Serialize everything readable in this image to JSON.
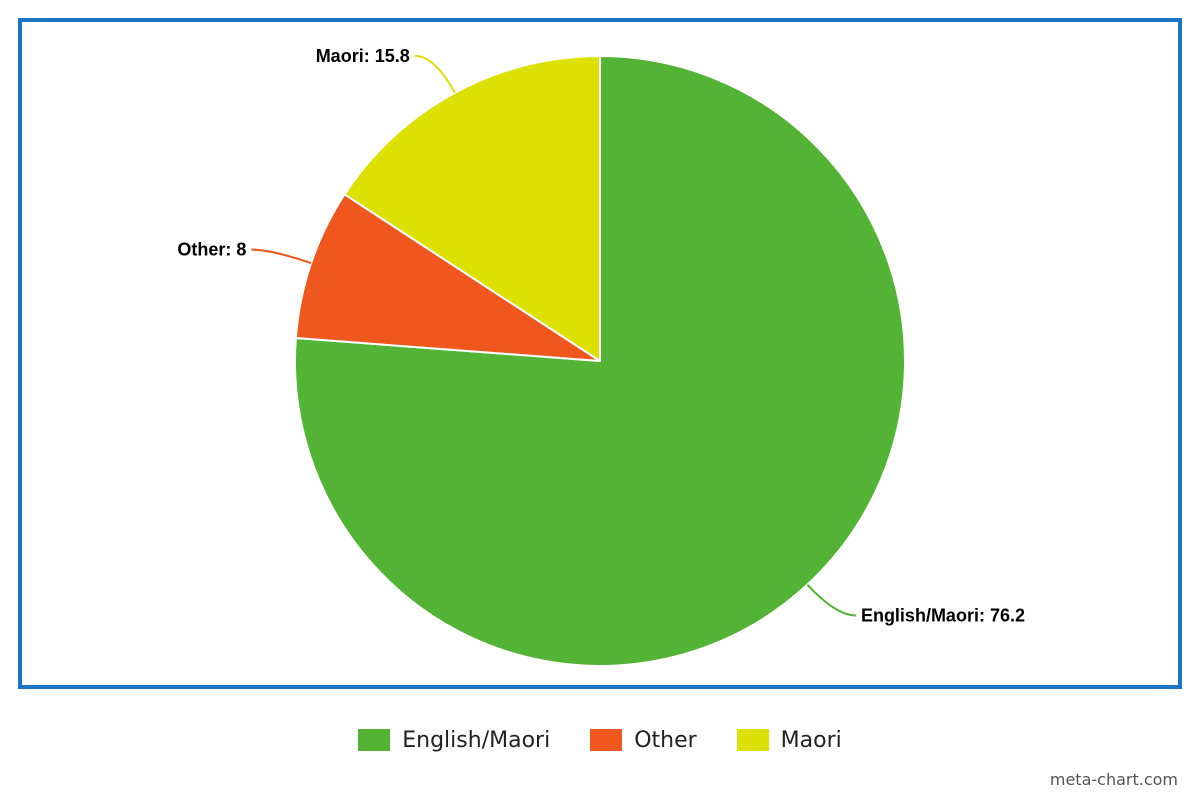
{
  "chart_data": {
    "type": "pie",
    "title": "",
    "categories": [
      "English/Maori",
      "Other",
      "Maori"
    ],
    "values": [
      76.2,
      8,
      15.8
    ],
    "data_labels": [
      "English/Maori: 76.2",
      "Other: 8",
      "Maori: 15.8"
    ],
    "colors": [
      "#52b335",
      "#ef571f",
      "#dde000"
    ],
    "start_angle": "12-o'clock",
    "direction": "clockwise",
    "legend": {
      "placement": "bottom-center",
      "entries": [
        "English/Maori",
        "Other",
        "Maori"
      ]
    }
  },
  "frame": {
    "border_color": "#1a75c2"
  },
  "watermark": "meta-chart.com"
}
